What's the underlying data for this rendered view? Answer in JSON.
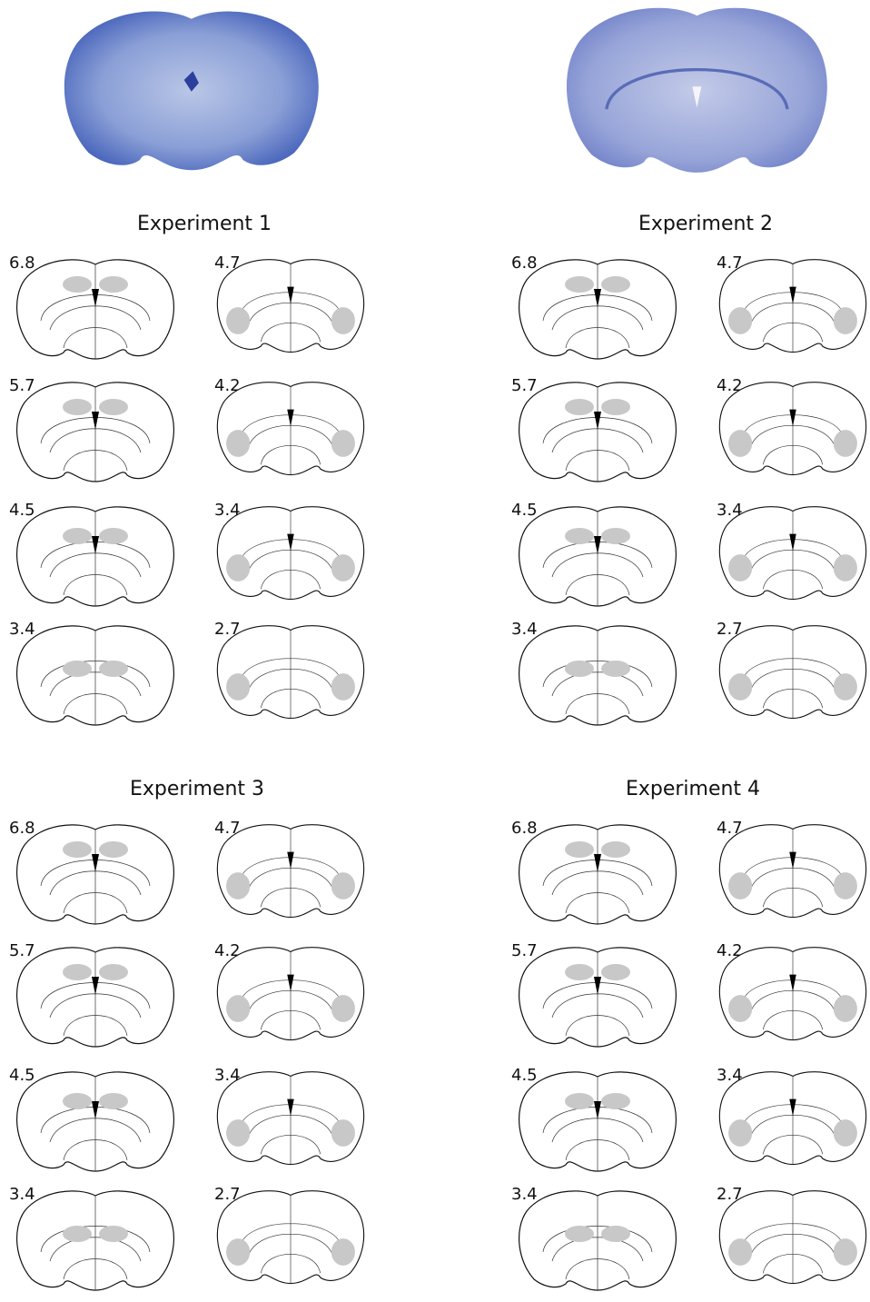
{
  "figure": {
    "panels": [
      {
        "title": "Experiment 1",
        "left_labels": [
          "6.8",
          "5.7",
          "4.5",
          "3.4"
        ],
        "right_labels": [
          "4.7",
          "4.2",
          "3.4",
          "2.7"
        ]
      },
      {
        "title": "Experiment 2",
        "left_labels": [
          "6.8",
          "5.7",
          "4.5",
          "3.4"
        ],
        "right_labels": [
          "4.7",
          "4.2",
          "3.4",
          "2.7"
        ]
      },
      {
        "title": "Experiment 3",
        "left_labels": [
          "6.8",
          "5.7",
          "4.5",
          "3.4"
        ],
        "right_labels": [
          "4.7",
          "4.2",
          "3.4",
          "2.7"
        ]
      },
      {
        "title": "Experiment 4",
        "left_labels": [
          "6.8",
          "5.7",
          "4.5",
          "3.4"
        ],
        "right_labels": [
          "4.7",
          "4.2",
          "3.4",
          "2.7"
        ]
      }
    ]
  }
}
